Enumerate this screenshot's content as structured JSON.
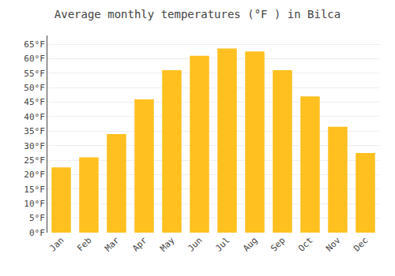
{
  "chart_data": {
    "type": "bar",
    "title": "Average monthly temperatures (°F ) in Bilca",
    "categories": [
      "Jan",
      "Feb",
      "Mar",
      "Apr",
      "May",
      "Jun",
      "Jul",
      "Aug",
      "Sep",
      "Oct",
      "Nov",
      "Dec"
    ],
    "values": [
      22.5,
      26,
      34,
      46,
      56,
      61,
      63.5,
      62.5,
      56,
      47,
      36.5,
      27.5
    ],
    "color": "#FFC020",
    "ylim": [
      0,
      68
    ],
    "yticks": [
      {
        "value": 0,
        "label": "0°F"
      },
      {
        "value": 5,
        "label": "5°F"
      },
      {
        "value": 10,
        "label": "10°F"
      },
      {
        "value": 15,
        "label": "15°F"
      },
      {
        "value": 20,
        "label": "20°F"
      },
      {
        "value": 25,
        "label": "25°F"
      },
      {
        "value": 30,
        "label": "30°F"
      },
      {
        "value": 35,
        "label": "35°F"
      },
      {
        "value": 40,
        "label": "40°F"
      },
      {
        "value": 45,
        "label": "45°F"
      },
      {
        "value": 50,
        "label": "50°F"
      },
      {
        "value": 55,
        "label": "55°F"
      },
      {
        "value": 60,
        "label": "60°F"
      },
      {
        "value": 65,
        "label": "65°F"
      }
    ],
    "grid": true
  }
}
